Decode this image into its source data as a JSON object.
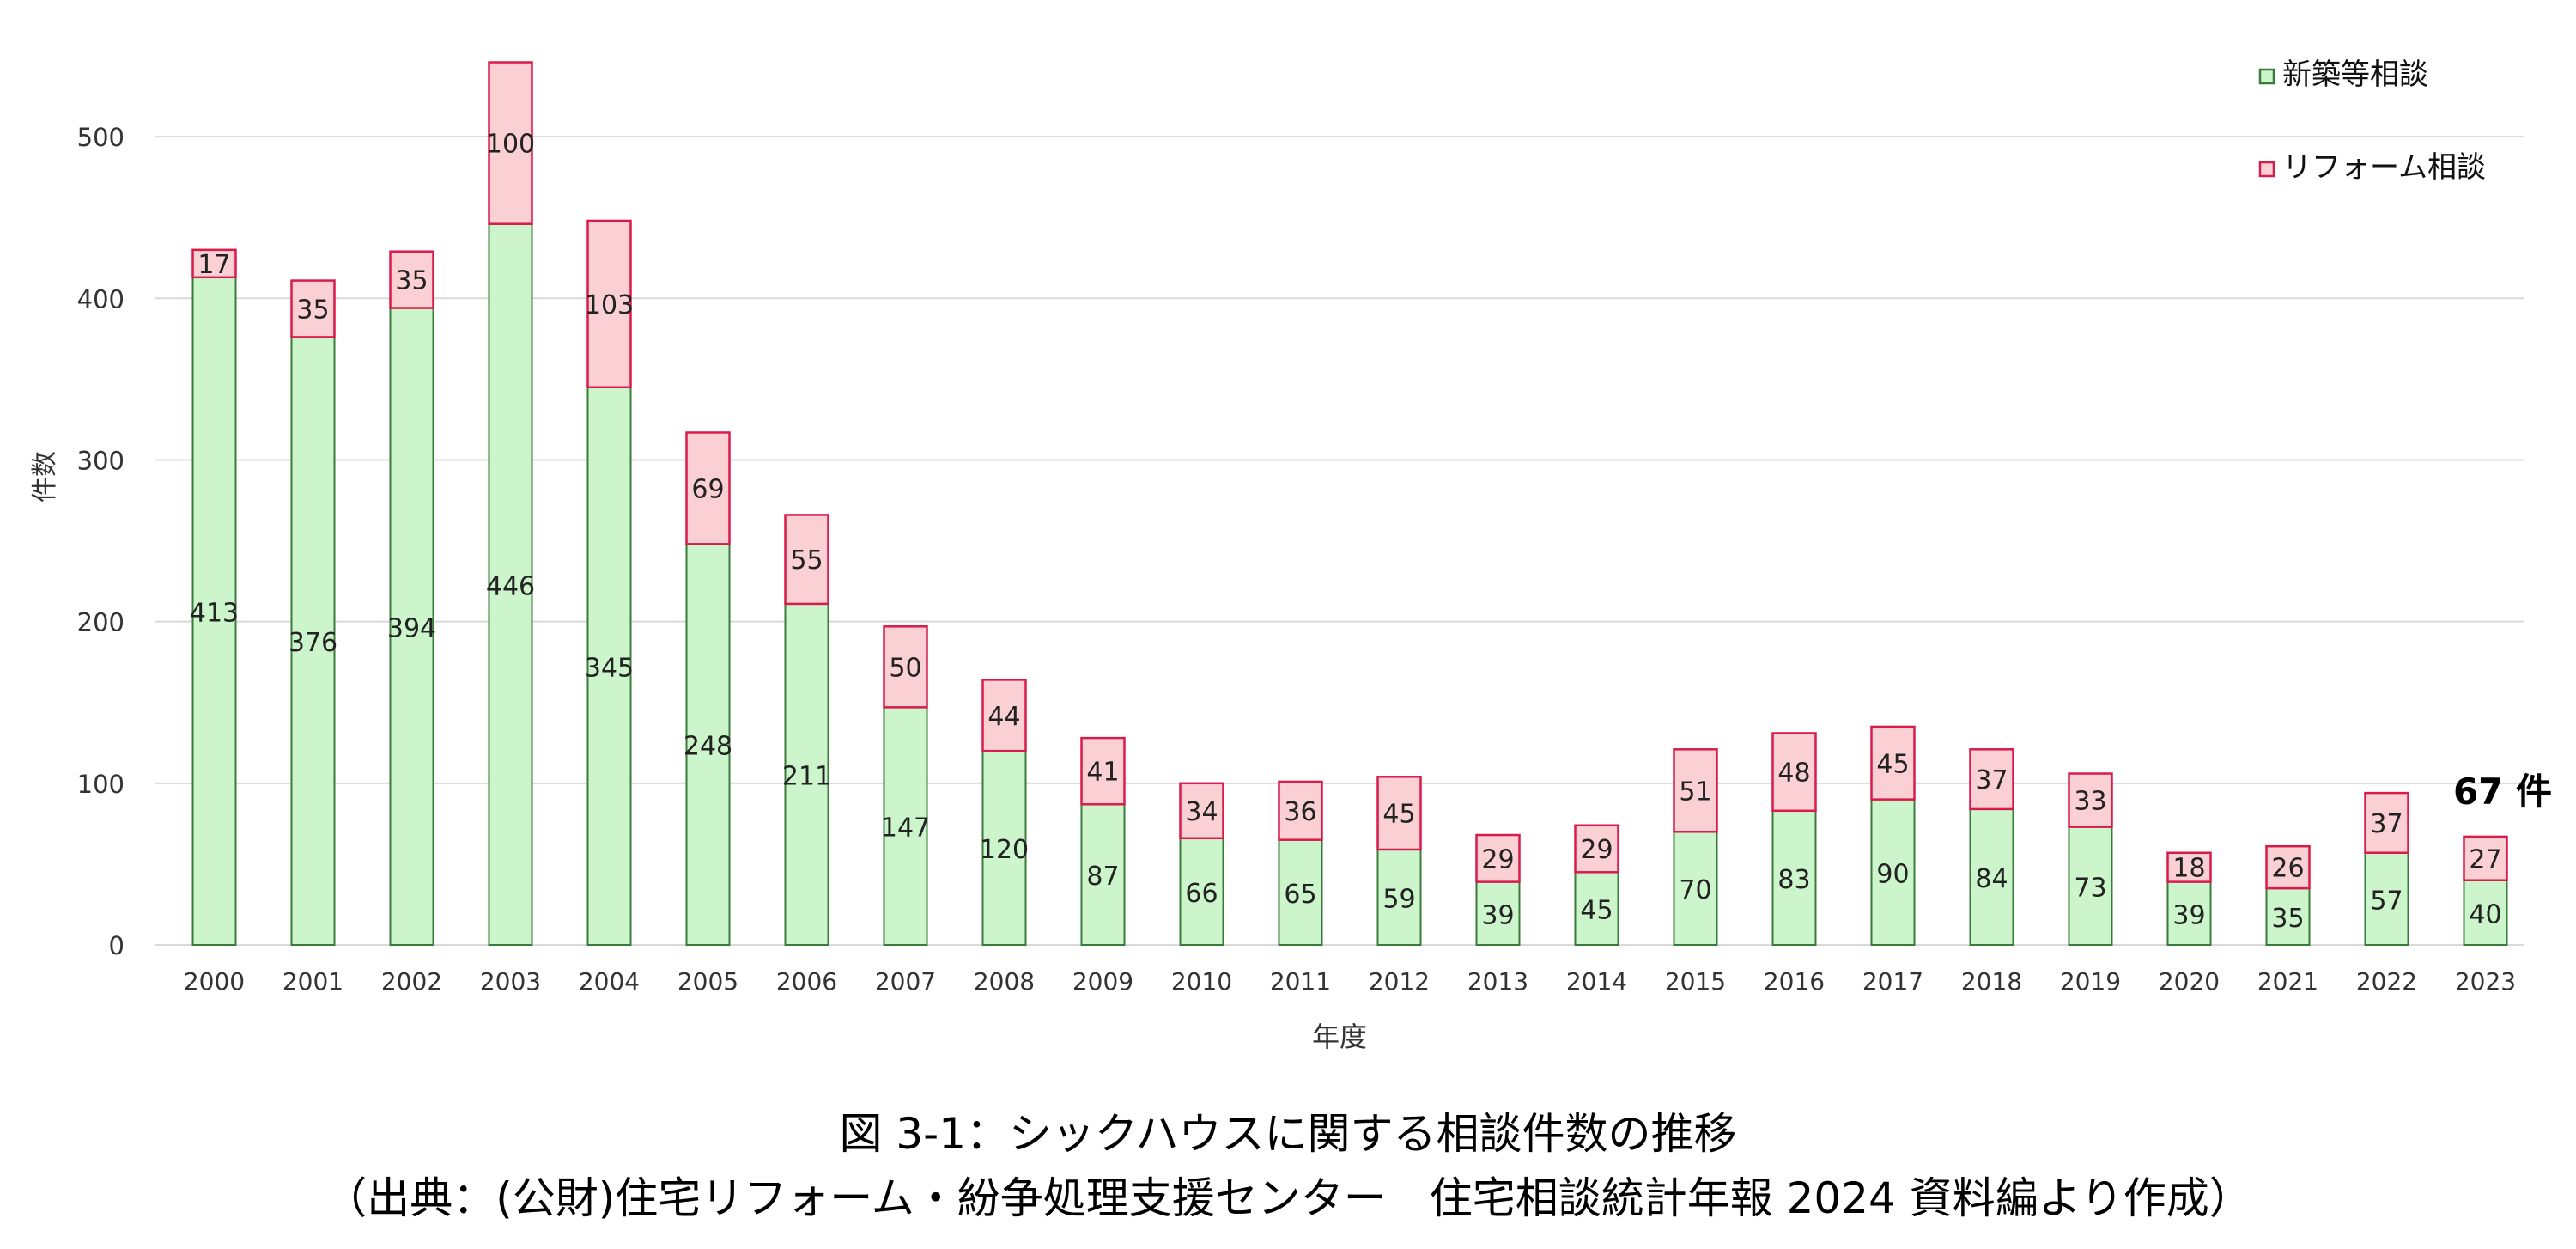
{
  "chart_data": {
    "type": "bar",
    "stacked": true,
    "title": "図 3-1：シックハウスに関する相談件数の推移",
    "source": "（出典：(公財)住宅リフォーム・紛争処理支援センター　住宅相談統計年報 2024 資料編より作成）",
    "xlabel": "年度",
    "ylabel": "件数",
    "ylim": [
      0,
      550
    ],
    "yticks": [
      0,
      100,
      200,
      300,
      400,
      500
    ],
    "grid": true,
    "legend_position": "top-right",
    "categories": [
      "2000",
      "2001",
      "2002",
      "2003",
      "2004",
      "2005",
      "2006",
      "2007",
      "2008",
      "2009",
      "2010",
      "2011",
      "2012",
      "2013",
      "2014",
      "2015",
      "2016",
      "2017",
      "2018",
      "2019",
      "2020",
      "2021",
      "2022",
      "2023"
    ],
    "series": [
      {
        "name": "新築等相談",
        "color": "#ccf5cc",
        "edge": "#3a7a3a",
        "values": [
          413,
          376,
          394,
          446,
          345,
          248,
          211,
          147,
          120,
          87,
          66,
          65,
          59,
          39,
          45,
          70,
          83,
          90,
          84,
          73,
          39,
          35,
          57,
          40
        ]
      },
      {
        "name": "リフォーム相談",
        "color": "#fbd0d4",
        "edge": "#d81b4a",
        "values": [
          17,
          35,
          35,
          100,
          103,
          69,
          55,
          50,
          44,
          41,
          34,
          36,
          45,
          29,
          29,
          51,
          48,
          45,
          37,
          33,
          18,
          26,
          37,
          27
        ]
      }
    ],
    "annotation": {
      "text": "67 件",
      "category": "2023"
    }
  }
}
